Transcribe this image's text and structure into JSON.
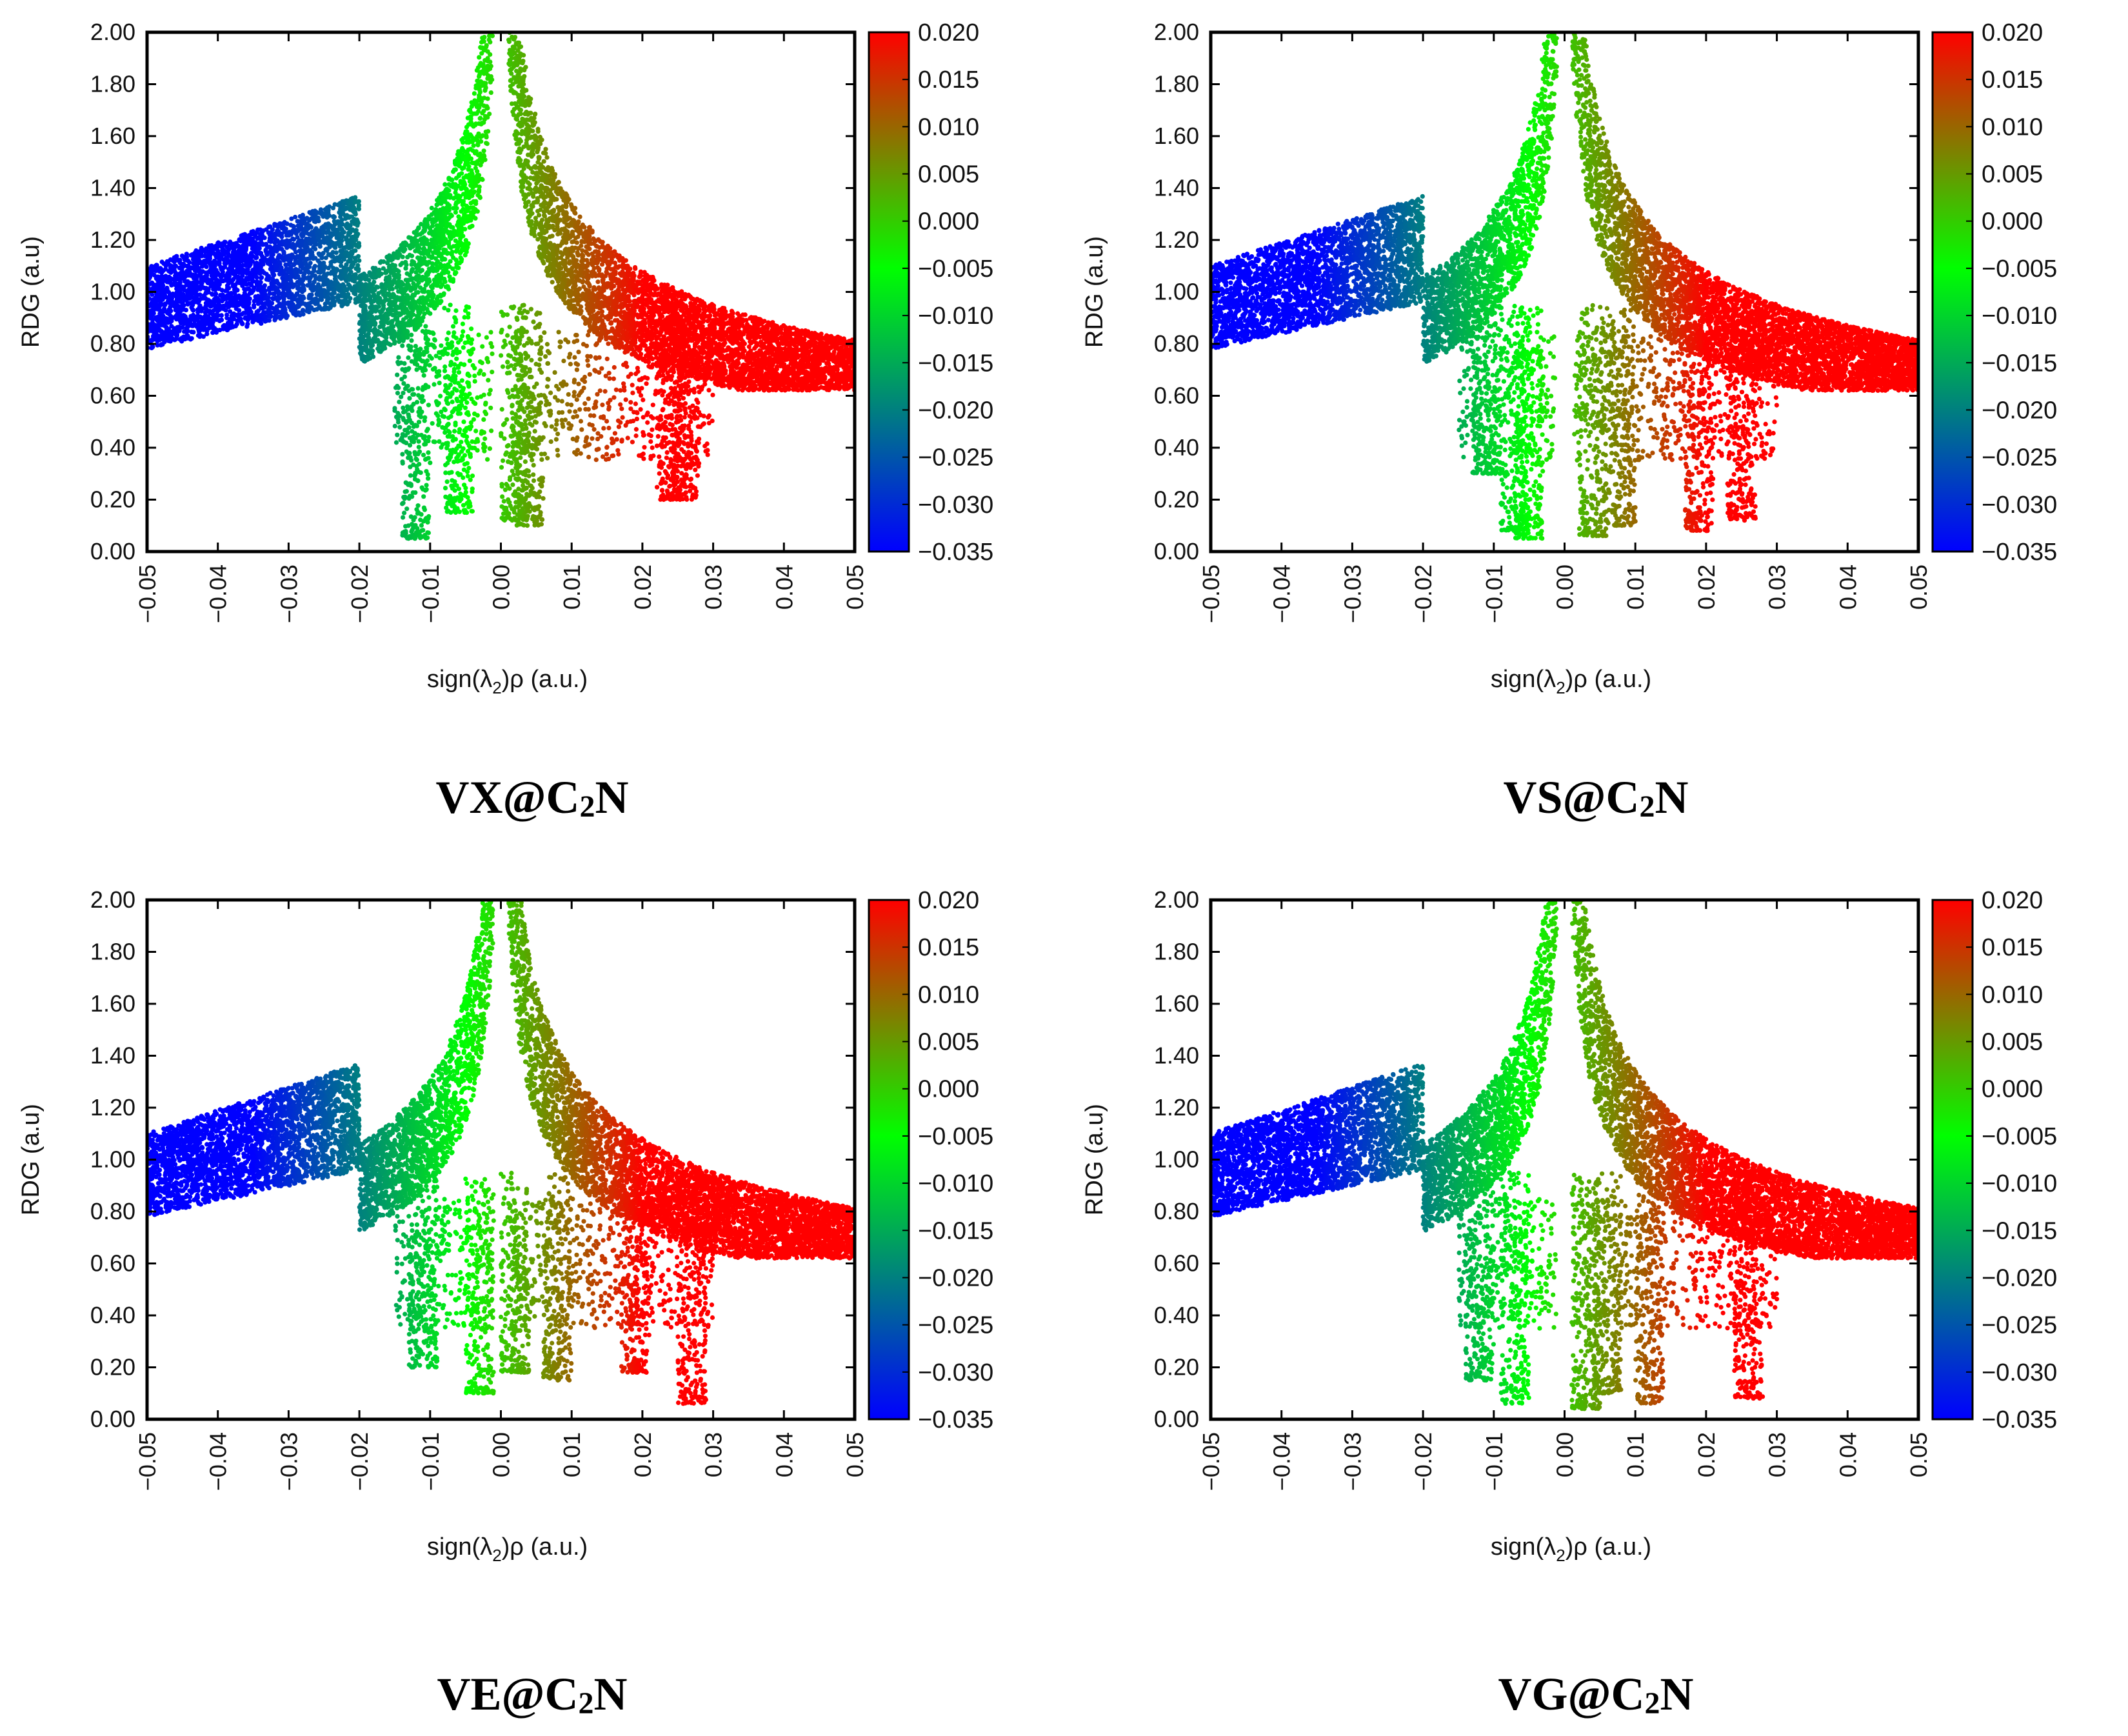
{
  "chart_data": [
    {
      "type": "scatter",
      "title": "VX@C₂N",
      "title_parts": {
        "prefix": "VX@C",
        "subscript": "2",
        "suffix": "N"
      },
      "xlabel": "sign(λ2)ρ (a.u.)",
      "ylabel": "RDG (a.u)",
      "xlim": [
        -0.05,
        0.05
      ],
      "ylim": [
        0.0,
        2.0
      ],
      "xticks": [
        "-0.05",
        "-0.04",
        "-0.03",
        "-0.02",
        "-0.01",
        "0.00",
        "0.01",
        "0.02",
        "0.03",
        "0.04",
        "0.05"
      ],
      "yticks": [
        "0.00",
        "0.20",
        "0.40",
        "0.60",
        "0.80",
        "1.00",
        "1.20",
        "1.40",
        "1.60",
        "1.80",
        "2.00"
      ],
      "colorbar": {
        "range": [
          -0.035,
          0.02
        ],
        "ticks": [
          "0.020",
          "0.015",
          "0.010",
          "0.005",
          "0.000",
          "-0.005",
          "-0.010",
          "-0.015",
          "-0.020",
          "-0.025",
          "-0.030",
          "-0.035"
        ],
        "colors": [
          "#0000ff",
          "#00ff00",
          "#ff0000"
        ]
      },
      "spikes": [
        {
          "x": -0.012,
          "min_rdg": 0.05
        },
        {
          "x": -0.006,
          "min_rdg": 0.15
        },
        {
          "x": 0.002,
          "min_rdg": 0.12
        },
        {
          "x": 0.004,
          "min_rdg": 0.1
        },
        {
          "x": 0.024,
          "min_rdg": 0.2
        },
        {
          "x": 0.026,
          "min_rdg": 0.2
        }
      ]
    },
    {
      "type": "scatter",
      "title": "VS@C₂N",
      "title_parts": {
        "prefix": "VS@C",
        "subscript": "2",
        "suffix": "N"
      },
      "xlabel": "sign(λ2)ρ (a.u.)",
      "ylabel": "RDG (a.u)",
      "xlim": [
        -0.05,
        0.05
      ],
      "ylim": [
        0.0,
        2.0
      ],
      "xticks": [
        "-0.05",
        "-0.04",
        "-0.03",
        "-0.02",
        "-0.01",
        "0.00",
        "0.01",
        "0.02",
        "0.03",
        "0.04",
        "0.05"
      ],
      "yticks": [
        "0.00",
        "0.20",
        "0.40",
        "0.60",
        "0.80",
        "1.00",
        "1.20",
        "1.40",
        "1.60",
        "1.80",
        "2.00"
      ],
      "colorbar": {
        "range": [
          -0.035,
          0.02
        ],
        "ticks": [
          "0.020",
          "0.015",
          "0.010",
          "0.005",
          "0.000",
          "-0.005",
          "-0.010",
          "-0.015",
          "-0.020",
          "-0.025",
          "-0.030",
          "-0.035"
        ],
        "colors": [
          "#0000ff",
          "#00ff00",
          "#ff0000"
        ]
      },
      "spikes": [
        {
          "x": -0.011,
          "min_rdg": 0.3
        },
        {
          "x": -0.007,
          "min_rdg": 0.08
        },
        {
          "x": -0.005,
          "min_rdg": 0.05
        },
        {
          "x": 0.004,
          "min_rdg": 0.06
        },
        {
          "x": 0.008,
          "min_rdg": 0.1
        },
        {
          "x": 0.019,
          "min_rdg": 0.08
        },
        {
          "x": 0.025,
          "min_rdg": 0.12
        }
      ]
    },
    {
      "type": "scatter",
      "title": "VE@C₂N",
      "title_parts": {
        "prefix": "VE@C",
        "subscript": "2",
        "suffix": "N"
      },
      "xlabel": "sign(λ2)ρ (a.u.)",
      "ylabel": "RDG (a.u)",
      "xlim": [
        -0.05,
        0.05
      ],
      "ylim": [
        0.0,
        2.0
      ],
      "xticks": [
        "-0.05",
        "-0.04",
        "-0.03",
        "-0.02",
        "-0.01",
        "0.00",
        "0.01",
        "0.02",
        "0.03",
        "0.04",
        "0.05"
      ],
      "yticks": [
        "0.00",
        "0.20",
        "0.40",
        "0.60",
        "0.80",
        "1.00",
        "1.20",
        "1.40",
        "1.60",
        "1.80",
        "2.00"
      ],
      "colorbar": {
        "range": [
          -0.035,
          0.02
        ],
        "ticks": [
          "0.020",
          "0.015",
          "0.010",
          "0.005",
          "0.000",
          "-0.005",
          "-0.010",
          "-0.015",
          "-0.020",
          "-0.025",
          "-0.030",
          "-0.035"
        ],
        "colors": [
          "#0000ff",
          "#00ff00",
          "#ff0000"
        ]
      },
      "spikes": [
        {
          "x": -0.011,
          "min_rdg": 0.2
        },
        {
          "x": -0.003,
          "min_rdg": 0.1
        },
        {
          "x": 0.002,
          "min_rdg": 0.18
        },
        {
          "x": 0.008,
          "min_rdg": 0.15
        },
        {
          "x": 0.019,
          "min_rdg": 0.18
        },
        {
          "x": 0.027,
          "min_rdg": 0.06
        }
      ]
    },
    {
      "type": "scatter",
      "title": "VG@C₂N",
      "title_parts": {
        "prefix": "VG@C",
        "subscript": "2",
        "suffix": "N"
      },
      "xlabel": "sign(λ2)ρ (a.u.)",
      "ylabel": "RDG (a.u)",
      "xlim": [
        -0.05,
        0.05
      ],
      "ylim": [
        0.0,
        2.0
      ],
      "xticks": [
        "-0.05",
        "-0.04",
        "-0.03",
        "-0.02",
        "-0.01",
        "0.00",
        "0.01",
        "0.02",
        "0.03",
        "0.04",
        "0.05"
      ],
      "yticks": [
        "0.00",
        "0.20",
        "0.40",
        "0.60",
        "0.80",
        "1.00",
        "1.20",
        "1.40",
        "1.60",
        "1.80",
        "2.00"
      ],
      "colorbar": {
        "range": [
          -0.035,
          0.02
        ],
        "ticks": [
          "0.020",
          "0.015",
          "0.010",
          "0.005",
          "0.000",
          "-0.005",
          "-0.010",
          "-0.015",
          "-0.020",
          "-0.025",
          "-0.030",
          "-0.035"
        ],
        "colors": [
          "#0000ff",
          "#00ff00",
          "#ff0000"
        ]
      },
      "spikes": [
        {
          "x": -0.012,
          "min_rdg": 0.15
        },
        {
          "x": -0.007,
          "min_rdg": 0.06
        },
        {
          "x": 0.003,
          "min_rdg": 0.04
        },
        {
          "x": 0.006,
          "min_rdg": 0.1
        },
        {
          "x": 0.012,
          "min_rdg": 0.06
        },
        {
          "x": 0.026,
          "min_rdg": 0.08
        }
      ]
    }
  ]
}
